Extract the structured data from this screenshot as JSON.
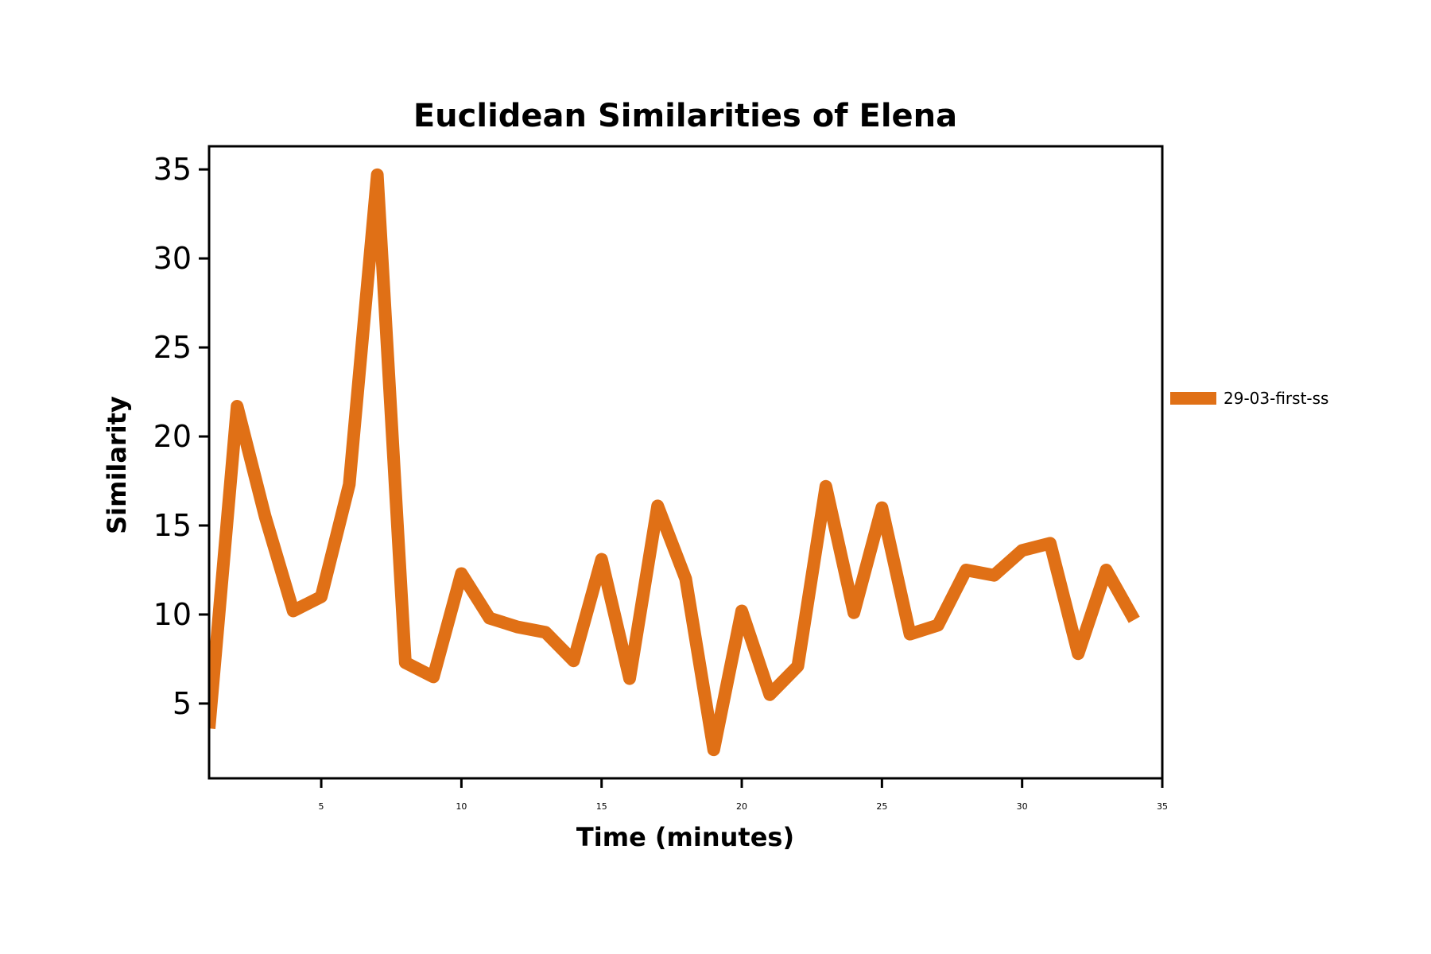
{
  "chart_data": {
    "type": "line",
    "title": "Euclidean Similarities of Elena",
    "xlabel": "Time (minutes)",
    "ylabel": "Similarity",
    "xlim": [
      1,
      35
    ],
    "ylim": [
      0.8,
      36.3
    ],
    "xticks": [
      5,
      10,
      15,
      20,
      25,
      30,
      35
    ],
    "yticks": [
      5,
      10,
      15,
      20,
      25,
      30,
      35
    ],
    "grid": false,
    "legend_position": "right",
    "series": [
      {
        "name": "29-03-first-ss",
        "color": "#e07016",
        "x": [
          1,
          2,
          3,
          4,
          5,
          6,
          7,
          8,
          9,
          10,
          11,
          12,
          13,
          14,
          15,
          16,
          17,
          18,
          19,
          20,
          21,
          22,
          23,
          24,
          25,
          26,
          27,
          28,
          29,
          30,
          31,
          32,
          33,
          34
        ],
        "y": [
          3.6,
          21.7,
          15.5,
          10.2,
          11.0,
          17.3,
          34.7,
          7.3,
          6.5,
          12.3,
          9.8,
          9.3,
          9.0,
          7.4,
          13.1,
          6.4,
          16.1,
          12.0,
          2.4,
          10.2,
          5.5,
          7.1,
          17.2,
          10.1,
          16.0,
          8.9,
          9.4,
          12.5,
          12.2,
          13.6,
          14.0,
          7.8,
          12.5,
          9.7
        ]
      }
    ]
  }
}
